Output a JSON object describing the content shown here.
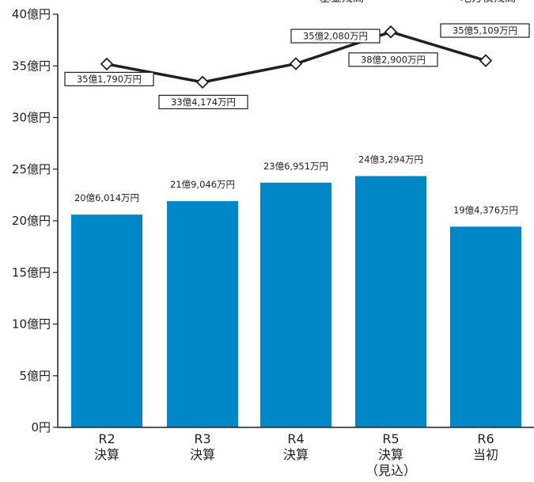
{
  "chart_data": {
    "type": "bar",
    "categories": [
      [
        "R2",
        "決算"
      ],
      [
        "R3",
        "決算"
      ],
      [
        "R4",
        "決算"
      ],
      [
        "R5",
        "決算",
        "（見込）"
      ],
      [
        "R6",
        "当初"
      ]
    ],
    "yticks": [
      "0円",
      "5億円",
      "10億円",
      "15億円",
      "20億円",
      "25億円",
      "30億円",
      "35億円",
      "40億円"
    ],
    "ylim": [
      0,
      40
    ],
    "legend": [
      "基金残高",
      "地方債残高"
    ],
    "series": [
      {
        "type": "bar",
        "color": "#0087c8",
        "values": [
          20.6014,
          21.9046,
          23.6951,
          24.3294,
          19.4376
        ],
        "labels": [
          "20億6,014万円",
          "21億9,046万円",
          "23億6,951万円",
          "24億3,294万円",
          "19億4,376万円"
        ]
      },
      {
        "type": "line",
        "color": "#231f20",
        "values": [
          35.179,
          33.4174,
          35.208,
          38.29,
          35.5109
        ],
        "labels": [
          "35億1,790万円",
          "33億4,174万円",
          "35億2,080万円",
          "38億2,900万円",
          "35億5,109万円"
        ]
      }
    ]
  }
}
